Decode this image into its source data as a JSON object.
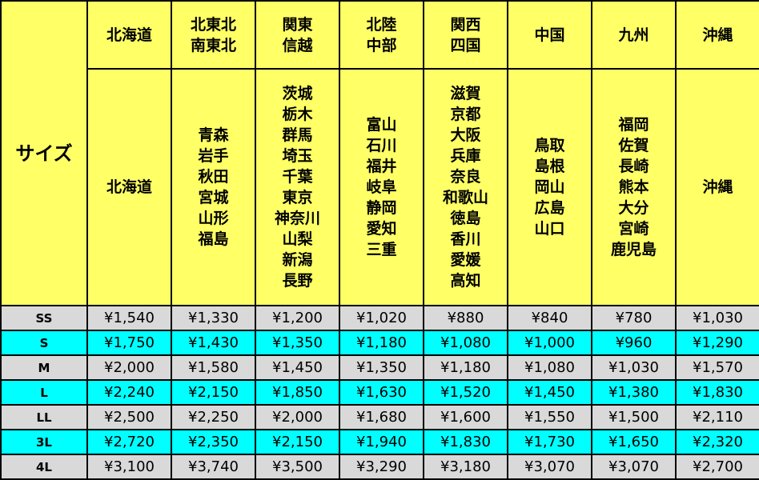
{
  "table": {
    "corner": "サイズ",
    "regions": [
      [
        "北海道"
      ],
      [
        "北東北",
        "南東北"
      ],
      [
        "関東",
        "信越"
      ],
      [
        "北陸",
        "中部"
      ],
      [
        "関西",
        "四国"
      ],
      [
        "中国"
      ],
      [
        "九州"
      ],
      [
        "沖縄"
      ]
    ],
    "prefectures": [
      [
        "北海道"
      ],
      [
        "青森",
        "岩手",
        "秋田",
        "宮城",
        "山形",
        "福島"
      ],
      [
        "茨城",
        "栃木",
        "群馬",
        "埼玉",
        "千葉",
        "東京",
        "神奈川",
        "山梨",
        "新潟",
        "長野"
      ],
      [
        "富山",
        "石川",
        "福井",
        "岐阜",
        "静岡",
        "愛知",
        "三重"
      ],
      [
        "滋賀",
        "京都",
        "大阪",
        "兵庫",
        "奈良",
        "和歌山",
        "徳島",
        "香川",
        "愛媛",
        "高知"
      ],
      [
        "鳥取",
        "島根",
        "岡山",
        "広島",
        "山口"
      ],
      [
        "福岡",
        "佐賀",
        "長崎",
        "熊本",
        "大分",
        "宮崎",
        "鹿児島"
      ],
      [
        "沖縄"
      ]
    ],
    "rows": [
      {
        "size": "SS",
        "prices": [
          "¥1,540",
          "¥1,330",
          "¥1,200",
          "¥1,020",
          "¥880",
          "¥840",
          "¥780",
          "¥1,030"
        ]
      },
      {
        "size": "S",
        "prices": [
          "¥1,750",
          "¥1,430",
          "¥1,350",
          "¥1,180",
          "¥1,080",
          "¥1,000",
          "¥960",
          "¥1,290"
        ]
      },
      {
        "size": "M",
        "prices": [
          "¥2,000",
          "¥1,580",
          "¥1,450",
          "¥1,350",
          "¥1,180",
          "¥1,080",
          "¥1,030",
          "¥1,570"
        ]
      },
      {
        "size": "L",
        "prices": [
          "¥2,240",
          "¥2,150",
          "¥1,850",
          "¥1,630",
          "¥1,520",
          "¥1,450",
          "¥1,380",
          "¥1,830"
        ]
      },
      {
        "size": "LL",
        "prices": [
          "¥2,500",
          "¥2,250",
          "¥2,000",
          "¥1,680",
          "¥1,600",
          "¥1,550",
          "¥1,500",
          "¥2,110"
        ]
      },
      {
        "size": "3L",
        "prices": [
          "¥2,720",
          "¥2,350",
          "¥2,150",
          "¥1,940",
          "¥1,830",
          "¥1,730",
          "¥1,650",
          "¥2,320"
        ]
      },
      {
        "size": "4L",
        "prices": [
          "¥3,100",
          "¥3,740",
          "¥3,500",
          "¥3,290",
          "¥3,180",
          "¥3,070",
          "¥3,070",
          "¥2,700"
        ]
      }
    ]
  }
}
